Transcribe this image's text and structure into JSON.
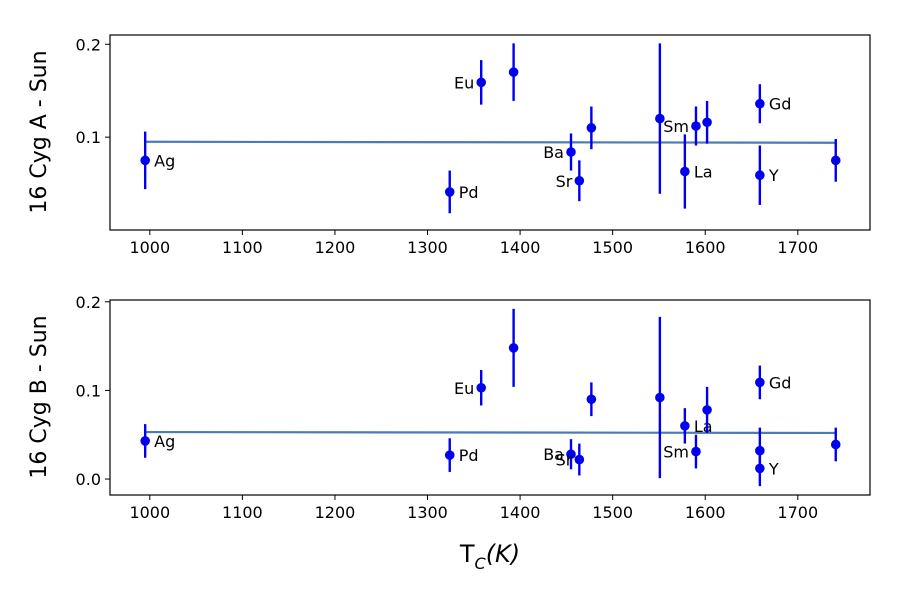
{
  "colors": {
    "points": "#0000ee",
    "fit": "#4a7ab8",
    "axes": "#000000"
  },
  "x_label_main": "T",
  "x_label_sub": "C",
  "x_label_unit": "(K)",
  "chart_data": [
    {
      "type": "scatter",
      "ylabel": "16 Cyg A - Sun",
      "xlim": [
        957,
        1778
      ],
      "ylim": [
        0.0,
        0.21
      ],
      "x_ticks": [
        1000,
        1100,
        1200,
        1300,
        1400,
        1500,
        1600,
        1700
      ],
      "y_ticks": [
        0.1,
        0.2
      ],
      "y_tick_labels": [
        "0.1",
        "0.2"
      ],
      "grid": false,
      "fit_line": {
        "x": [
          995,
          1741
        ],
        "y": [
          0.095,
          0.094
        ]
      },
      "points": [
        {
          "x": 995,
          "y": 0.075,
          "err": 0.031,
          "label": "Ag",
          "label_pos": "right"
        },
        {
          "x": 1324,
          "y": 0.041,
          "err": 0.023,
          "label": "Pd",
          "label_pos": "right"
        },
        {
          "x": 1358,
          "y": 0.159,
          "err": 0.024,
          "label": "Eu",
          "label_pos": "left"
        },
        {
          "x": 1393,
          "y": 0.17,
          "err": 0.031,
          "label": "",
          "label_pos": ""
        },
        {
          "x": 1455,
          "y": 0.084,
          "err": 0.02,
          "label": "Ba",
          "label_pos": "left"
        },
        {
          "x": 1464,
          "y": 0.053,
          "err": 0.022,
          "label": "Sr",
          "label_pos": "left"
        },
        {
          "x": 1477,
          "y": 0.11,
          "err": 0.023,
          "label": "",
          "label_pos": ""
        },
        {
          "x": 1551,
          "y": 0.12,
          "err": 0.081,
          "label": "",
          "label_pos": ""
        },
        {
          "x": 1578,
          "y": 0.063,
          "err": 0.04,
          "label": "La",
          "label_pos": "right"
        },
        {
          "x": 1590,
          "y": 0.112,
          "err": 0.021,
          "label": "Sm",
          "label_pos": "left"
        },
        {
          "x": 1602,
          "y": 0.116,
          "err": 0.023,
          "label": "",
          "label_pos": ""
        },
        {
          "x": 1659,
          "y": 0.136,
          "err": 0.021,
          "label": "Gd",
          "label_pos": "right"
        },
        {
          "x": 1659,
          "y": 0.059,
          "err": 0.032,
          "label": "Y",
          "label_pos": "right"
        },
        {
          "x": 1741,
          "y": 0.075,
          "err": 0.023,
          "label": "",
          "label_pos": ""
        }
      ]
    },
    {
      "type": "scatter",
      "ylabel": "16 Cyg B - Sun",
      "xlim": [
        957,
        1778
      ],
      "ylim": [
        -0.018,
        0.202
      ],
      "x_ticks": [
        1000,
        1100,
        1200,
        1300,
        1400,
        1500,
        1600,
        1700
      ],
      "y_ticks": [
        0.0,
        0.1,
        0.2
      ],
      "y_tick_labels": [
        "0.0",
        "0.1",
        "0.2"
      ],
      "grid": false,
      "fit_line": {
        "x": [
          995,
          1741
        ],
        "y": [
          0.053,
          0.052
        ]
      },
      "points": [
        {
          "x": 995,
          "y": 0.043,
          "err": 0.019,
          "label": "Ag",
          "label_pos": "right"
        },
        {
          "x": 1324,
          "y": 0.027,
          "err": 0.019,
          "label": "Pd",
          "label_pos": "right"
        },
        {
          "x": 1358,
          "y": 0.103,
          "err": 0.02,
          "label": "Eu",
          "label_pos": "left"
        },
        {
          "x": 1393,
          "y": 0.148,
          "err": 0.044,
          "label": "",
          "label_pos": ""
        },
        {
          "x": 1455,
          "y": 0.028,
          "err": 0.017,
          "label": "Ba",
          "label_pos": "left"
        },
        {
          "x": 1464,
          "y": 0.022,
          "err": 0.018,
          "label": "Sr",
          "label_pos": "left"
        },
        {
          "x": 1477,
          "y": 0.09,
          "err": 0.019,
          "label": "",
          "label_pos": ""
        },
        {
          "x": 1551,
          "y": 0.092,
          "err": 0.091,
          "label": "",
          "label_pos": ""
        },
        {
          "x": 1578,
          "y": 0.06,
          "err": 0.02,
          "label": "La",
          "label_pos": "right"
        },
        {
          "x": 1590,
          "y": 0.031,
          "err": 0.019,
          "label": "Sm",
          "label_pos": "left"
        },
        {
          "x": 1602,
          "y": 0.078,
          "err": 0.026,
          "label": "",
          "label_pos": ""
        },
        {
          "x": 1659,
          "y": 0.109,
          "err": 0.019,
          "label": "Gd",
          "label_pos": "right"
        },
        {
          "x": 1659,
          "y": 0.032,
          "err": 0.026,
          "label": "",
          "label_pos": ""
        },
        {
          "x": 1659,
          "y": 0.012,
          "err": 0.02,
          "label": "Y",
          "label_pos": "right"
        },
        {
          "x": 1741,
          "y": 0.039,
          "err": 0.019,
          "label": "",
          "label_pos": ""
        }
      ]
    }
  ]
}
